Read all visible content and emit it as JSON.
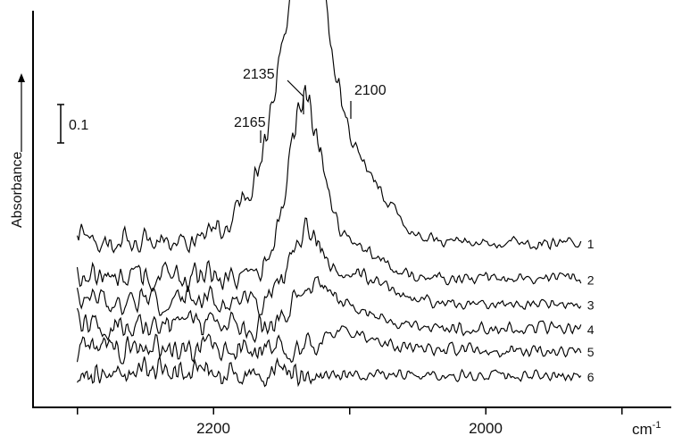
{
  "chart_data": {
    "type": "line",
    "title": "",
    "ylabel": "Absorbance",
    "xlabel": "cm-1",
    "xlim": [
      2300,
      1930
    ],
    "x_reversed": true,
    "x_ticks": [
      {
        "value": 2200,
        "label": "2200"
      },
      {
        "value": 2000,
        "label": "2000"
      }
    ],
    "x_minor_ticks": [
      2300,
      2100,
      1900
    ],
    "x_unit_label": "cm-1",
    "x_unit_base": "cm",
    "x_unit_sup": "-1",
    "y_axis_ticks": false,
    "grid": false,
    "legend": "none",
    "scale_bar": {
      "value": 0.1,
      "label": "0.1"
    },
    "annotations": [
      {
        "x": 2165,
        "label": "2165"
      },
      {
        "x": 2135,
        "label": "2135"
      },
      {
        "x": 2100,
        "label": "2100"
      }
    ],
    "series": [
      {
        "label": "1",
        "baseline": 0.96,
        "peaks": [
          {
            "x": 2133,
            "h": 1.92,
            "w": 15
          },
          {
            "x": 2106,
            "h": 0.64,
            "w": 26
          },
          {
            "x": 2167,
            "h": 0.35,
            "w": 16
          }
        ]
      },
      {
        "label": "2",
        "baseline": 0.7,
        "peaks": [
          {
            "x": 2133,
            "h": 1.2,
            "w": 12
          },
          {
            "x": 2103,
            "h": 0.25,
            "w": 20
          }
        ]
      },
      {
        "label": "3",
        "baseline": 0.52,
        "peaks": [
          {
            "x": 2133,
            "h": 0.45,
            "w": 11
          },
          {
            "x": 2098,
            "h": 0.2,
            "w": 24
          }
        ]
      },
      {
        "label": "4",
        "baseline": 0.34,
        "peaks": [
          {
            "x": 2128,
            "h": 0.24,
            "w": 14
          },
          {
            "x": 2098,
            "h": 0.12,
            "w": 20
          }
        ]
      },
      {
        "label": "5",
        "baseline": 0.18,
        "peaks": [
          {
            "x": 2100,
            "h": 0.12,
            "w": 20
          }
        ]
      },
      {
        "label": "6",
        "baseline": 0.0,
        "peaks": []
      }
    ]
  }
}
